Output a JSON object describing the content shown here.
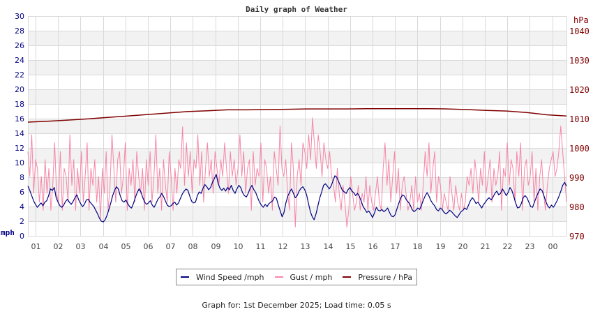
{
  "chart_data": {
    "type": "line",
    "title": "Daily graph of Weather",
    "xlabel": "",
    "ylabel": "mph",
    "y2label": "hPa",
    "ylim": [
      0,
      30
    ],
    "y2lim": [
      970,
      1045
    ],
    "yticks": [
      "0",
      "2",
      "4",
      "6",
      "8",
      "10",
      "12",
      "14",
      "16",
      "18",
      "20",
      "22",
      "24",
      "26",
      "28",
      "30"
    ],
    "y2ticks": [
      "970",
      "980",
      "990",
      "1000",
      "1010",
      "1020",
      "1030",
      "1040"
    ],
    "categories": [
      "01",
      "02",
      "03",
      "04",
      "05",
      "06",
      "07",
      "08",
      "09",
      "10",
      "11",
      "12",
      "13",
      "14",
      "15",
      "16",
      "17",
      "18",
      "19",
      "20",
      "21",
      "22",
      "23",
      "00"
    ],
    "grid": true,
    "legend_position": "bottom",
    "series": [
      {
        "name": "Wind Speed /mph",
        "color": "#000080",
        "axis": "left",
        "values": [
          6.8,
          6.2,
          5.5,
          4.8,
          4.3,
          3.9,
          4.2,
          4.5,
          4.1,
          4.6,
          4.8,
          5.5,
          6.4,
          6.2,
          6.6,
          5.2,
          4.6,
          4.1,
          3.9,
          4.2,
          4.7,
          5.0,
          4.6,
          4.3,
          4.7,
          5.2,
          5.6,
          4.9,
          4.4,
          4.0,
          4.3,
          4.9,
          5.0,
          4.6,
          4.3,
          4.0,
          3.5,
          3.0,
          2.4,
          2.0,
          1.9,
          2.2,
          2.8,
          3.6,
          4.5,
          5.5,
          6.2,
          6.7,
          6.4,
          5.5,
          4.8,
          4.6,
          4.9,
          4.4,
          4.0,
          3.8,
          4.4,
          5.2,
          5.9,
          6.4,
          6.0,
          5.2,
          4.6,
          4.3,
          4.5,
          4.8,
          4.2,
          3.9,
          4.4,
          5.0,
          5.3,
          5.8,
          5.4,
          4.8,
          4.2,
          4.0,
          4.1,
          4.4,
          4.6,
          4.2,
          4.5,
          5.1,
          5.7,
          6.1,
          6.4,
          6.2,
          5.4,
          4.7,
          4.5,
          4.6,
          5.5,
          6.0,
          5.8,
          6.5,
          7.0,
          6.7,
          6.3,
          6.6,
          7.3,
          7.8,
          8.4,
          7.2,
          6.5,
          6.2,
          6.5,
          6.1,
          6.6,
          6.3,
          6.9,
          6.2,
          5.8,
          6.4,
          6.9,
          6.6,
          5.9,
          5.5,
          5.3,
          5.8,
          6.5,
          6.9,
          6.3,
          5.9,
          5.2,
          4.6,
          4.2,
          3.9,
          4.3,
          4.0,
          4.4,
          4.6,
          4.8,
          5.3,
          5.1,
          4.2,
          3.4,
          2.6,
          3.2,
          4.5,
          5.4,
          6.0,
          6.4,
          5.8,
          5.2,
          5.5,
          6.1,
          6.5,
          6.7,
          6.3,
          5.6,
          4.4,
          3.3,
          2.6,
          2.2,
          3.0,
          4.1,
          5.2,
          6.0,
          6.9,
          7.1,
          6.8,
          6.4,
          6.8,
          7.5,
          8.2,
          8.0,
          7.4,
          6.8,
          6.2,
          6.0,
          5.8,
          6.3,
          6.6,
          6.1,
          5.9,
          5.5,
          5.8,
          5.4,
          4.7,
          4.0,
          3.6,
          3.2,
          3.4,
          3.0,
          2.5,
          3.1,
          3.9,
          3.5,
          3.4,
          3.6,
          3.3,
          3.5,
          3.8,
          3.2,
          2.7,
          2.6,
          2.9,
          3.7,
          4.5,
          5.2,
          5.6,
          5.4,
          4.9,
          4.6,
          4.2,
          3.6,
          3.3,
          3.5,
          3.8,
          3.6,
          4.2,
          4.9,
          5.5,
          5.9,
          5.4,
          4.8,
          4.4,
          4.1,
          3.6,
          3.4,
          3.8,
          3.6,
          3.2,
          3.0,
          3.2,
          3.5,
          3.3,
          3.0,
          2.7,
          2.5,
          2.9,
          3.3,
          3.5,
          3.8,
          3.6,
          4.2,
          4.8,
          5.2,
          4.9,
          4.4,
          4.6,
          4.2,
          3.8,
          4.3,
          4.6,
          5.0,
          5.2,
          4.9,
          5.3,
          5.8,
          6.1,
          5.6,
          5.8,
          6.4,
          6.0,
          5.5,
          5.9,
          6.6,
          6.2,
          5.4,
          4.5,
          3.8,
          3.9,
          4.4,
          5.2,
          5.5,
          5.2,
          4.6,
          4.0,
          3.9,
          4.6,
          5.3,
          5.9,
          6.4,
          6.2,
          5.5,
          4.7,
          4.1,
          3.8,
          4.2,
          3.9,
          4.3,
          4.8,
          5.4,
          6.1,
          6.9,
          7.3,
          6.8
        ]
      },
      {
        "name": "Gust / mph",
        "color": "#f785a8",
        "axis": "left",
        "values": [
          11.5,
          8.1,
          13.8,
          5.8,
          10.4,
          9.2,
          4.6,
          8.1,
          3.5,
          10.4,
          5.8,
          9.2,
          3.5,
          6.9,
          12.7,
          5.8,
          4.6,
          11.5,
          3.5,
          9.2,
          8.1,
          4.6,
          13.8,
          6.9,
          10.4,
          3.5,
          9.2,
          5.8,
          11.5,
          4.6,
          8.1,
          12.7,
          3.5,
          9.2,
          6.9,
          10.4,
          4.6,
          8.1,
          2.3,
          9.2,
          5.8,
          11.5,
          3.5,
          6.9,
          13.8,
          9.2,
          4.6,
          10.4,
          11.5,
          5.8,
          8.1,
          12.7,
          3.5,
          9.2,
          6.9,
          10.4,
          4.6,
          11.5,
          8.1,
          5.8,
          9.2,
          3.5,
          10.4,
          6.9,
          11.5,
          4.6,
          8.1,
          13.8,
          5.8,
          9.2,
          3.5,
          10.4,
          6.9,
          4.6,
          11.5,
          8.1,
          3.5,
          9.2,
          5.8,
          10.4,
          9.2,
          14.9,
          6.9,
          12.7,
          8.1,
          11.5,
          5.8,
          10.4,
          9.2,
          13.8,
          6.9,
          11.5,
          4.6,
          9.2,
          12.7,
          8.1,
          10.4,
          5.8,
          11.5,
          9.2,
          6.9,
          10.4,
          8.1,
          12.7,
          9.2,
          5.8,
          11.5,
          8.1,
          10.4,
          6.9,
          9.2,
          13.8,
          8.1,
          11.5,
          5.8,
          9.2,
          10.4,
          3.5,
          11.5,
          6.9,
          9.2,
          8.1,
          12.7,
          4.6,
          10.4,
          9.2,
          5.8,
          8.1,
          3.5,
          11.5,
          9.2,
          6.9,
          15.0,
          9.2,
          8.1,
          10.4,
          5.8,
          3.5,
          12.7,
          9.2,
          1.2,
          8.1,
          10.4,
          6.9,
          12.7,
          11.5,
          9.2,
          13.8,
          10.4,
          16.1,
          12.7,
          9.2,
          13.8,
          11.5,
          8.1,
          12.7,
          10.4,
          9.2,
          11.5,
          8.1,
          6.9,
          4.6,
          9.2,
          5.8,
          3.5,
          6.9,
          4.6,
          1.2,
          3.5,
          8.1,
          5.8,
          3.5,
          4.6,
          6.9,
          3.5,
          5.8,
          4.6,
          8.1,
          3.5,
          6.9,
          4.6,
          3.5,
          5.8,
          8.1,
          4.6,
          3.5,
          9.2,
          12.7,
          6.9,
          10.4,
          4.6,
          8.1,
          11.5,
          5.8,
          9.2,
          3.5,
          6.9,
          8.1,
          5.8,
          3.5,
          4.6,
          6.9,
          3.5,
          8.1,
          4.6,
          5.8,
          3.5,
          6.9,
          11.5,
          8.1,
          12.7,
          5.8,
          9.2,
          11.5,
          4.6,
          8.1,
          6.9,
          3.5,
          5.8,
          4.6,
          3.5,
          8.1,
          5.8,
          3.5,
          6.9,
          4.6,
          3.5,
          5.8,
          3.5,
          4.6,
          8.1,
          6.9,
          9.2,
          5.8,
          10.4,
          8.1,
          4.6,
          9.2,
          6.9,
          11.5,
          5.8,
          8.1,
          10.4,
          4.6,
          9.2,
          6.9,
          8.1,
          11.5,
          3.5,
          9.2,
          8.1,
          12.7,
          6.9,
          10.4,
          9.2,
          4.6,
          11.5,
          8.1,
          12.7,
          3.5,
          9.2,
          10.4,
          6.9,
          8.1,
          11.5,
          4.6,
          9.2,
          3.5,
          8.1,
          10.4,
          5.8,
          3.5,
          6.9,
          9.2,
          10.4,
          11.5,
          8.1,
          9.2,
          11.5,
          15.0,
          11.5,
          8.1,
          4.6
        ]
      },
      {
        "name": "Pressure / hPa",
        "color": "#800000",
        "axis": "right",
        "values": [
          1008.8,
          1009.1,
          1009.5,
          1009.9,
          1010.4,
          1010.9,
          1011.4,
          1011.9,
          1012.4,
          1012.7,
          1013.0,
          1013.0,
          1013.1,
          1013.2,
          1013.3,
          1013.3,
          1013.3,
          1013.4,
          1013.4,
          1013.4,
          1013.4,
          1013.3,
          1013.1,
          1012.8,
          1012.6,
          1012.1,
          1011.3,
          1010.9
        ]
      }
    ]
  },
  "legend": {
    "items": [
      {
        "label": "Wind Speed /mph",
        "color": "#000080"
      },
      {
        "label": "Gust / mph",
        "color": "#f785a8"
      },
      {
        "label": "Pressure / hPa",
        "color": "#800000"
      }
    ]
  },
  "footer": {
    "text": "Graph for: 1st December 2025; Load time: 0.05 s"
  }
}
